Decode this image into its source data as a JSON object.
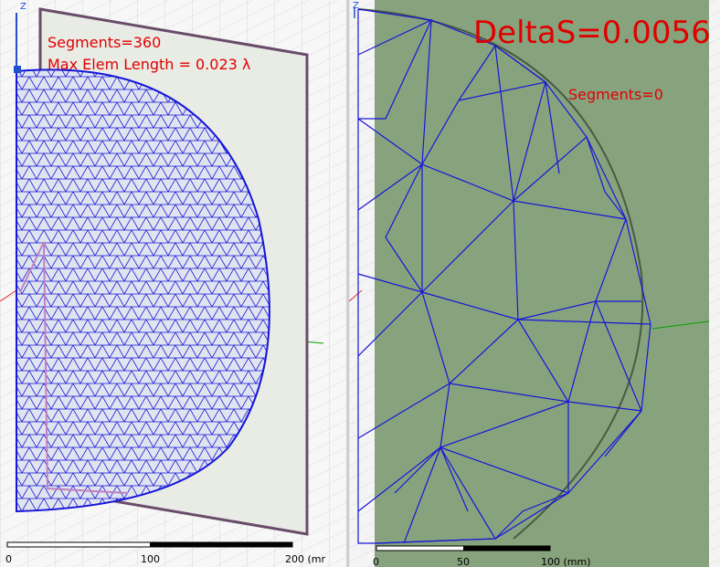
{
  "left_view": {
    "segments_label": "Segments=360",
    "max_elem_label": "Max Elem Length = 0.023 λ",
    "axis_z": "Z",
    "ruler": {
      "ticks": [
        "0",
        "100",
        "200 (mr"
      ]
    }
  },
  "right_view": {
    "delta_label": "DeltaS=0.0056",
    "segments_label": "Segments=0",
    "axis_z": "Z",
    "ruler": {
      "ticks": [
        "0",
        "50",
        "100 (mm)"
      ]
    }
  },
  "colors": {
    "mesh": "#1616d8",
    "annotation": "#e00000",
    "plane_left": "#e9ebe5",
    "plane_right": "#87a37d",
    "frame": "#6a4c6a"
  }
}
